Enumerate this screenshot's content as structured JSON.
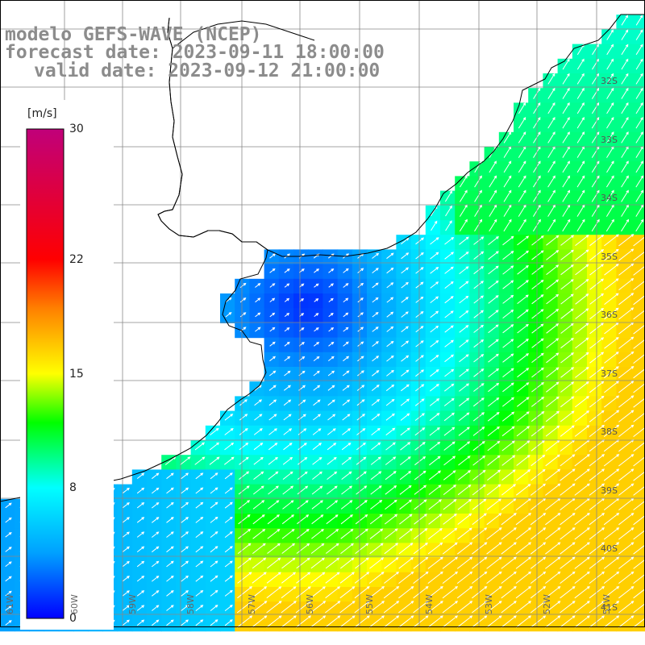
{
  "title": {
    "line1": "modelo GEFS-WAVE (NCEP)",
    "line2": "forecast date: 2023-09-11 18:00:00",
    "line3": "valid date: 2023-09-12 21:00:00"
  },
  "colorbar": {
    "units": "[m/s]",
    "ticks": [
      {
        "value": 30,
        "label": "30"
      },
      {
        "value": 22,
        "label": "22"
      },
      {
        "value": 15,
        "label": "15"
      },
      {
        "value": 8,
        "label": "8"
      },
      {
        "value": 0,
        "label": "0"
      }
    ],
    "min": 0,
    "max": 30,
    "colors": [
      "#0000ff",
      "#00a0ff",
      "#00ffff",
      "#00ff00",
      "#ffff00",
      "#ff8000",
      "#ff0000",
      "#c0007a"
    ]
  },
  "map": {
    "lon_range": [
      -61.3,
      -50.0
    ],
    "lat_range": [
      -41.5,
      -31.0
    ],
    "lat_labels": [
      "32S",
      "33S",
      "34S",
      "35S",
      "36S",
      "37S",
      "38S",
      "39S",
      "40S",
      "41S"
    ],
    "lon_labels": [
      "61W",
      "60W",
      "59W",
      "58W",
      "57W",
      "56W",
      "55W",
      "54W",
      "53W",
      "52W",
      "51W"
    ],
    "land_color": "#ffffff",
    "coast_color": "#000000",
    "grid_color": "#888888"
  }
}
